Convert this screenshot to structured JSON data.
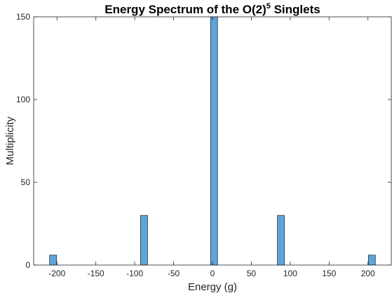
{
  "chart_data": {
    "type": "bar",
    "title": "Energy Spectrum of the O(2)",
    "title_superscript": "5",
    "title_suffix": " Singlets",
    "xlabel": "Energy (g)",
    "ylabel": "Multiplicity",
    "xlim": [
      -230,
      230
    ],
    "ylim": [
      0,
      150
    ],
    "xticks": [
      -200,
      -150,
      -100,
      -50,
      0,
      50,
      100,
      150,
      200
    ],
    "yticks": [
      0,
      50,
      100,
      150
    ],
    "bin_width": 9,
    "bins": [
      {
        "x": -205,
        "value": 6
      },
      {
        "x": -88,
        "value": 30
      },
      {
        "x": 2,
        "value": 150
      },
      {
        "x": 88,
        "value": 30
      },
      {
        "x": 205,
        "value": 6
      }
    ],
    "bar_color": "#5DA5D9",
    "edge_color": "#1a1a1a",
    "grid": false,
    "legend": "none"
  }
}
